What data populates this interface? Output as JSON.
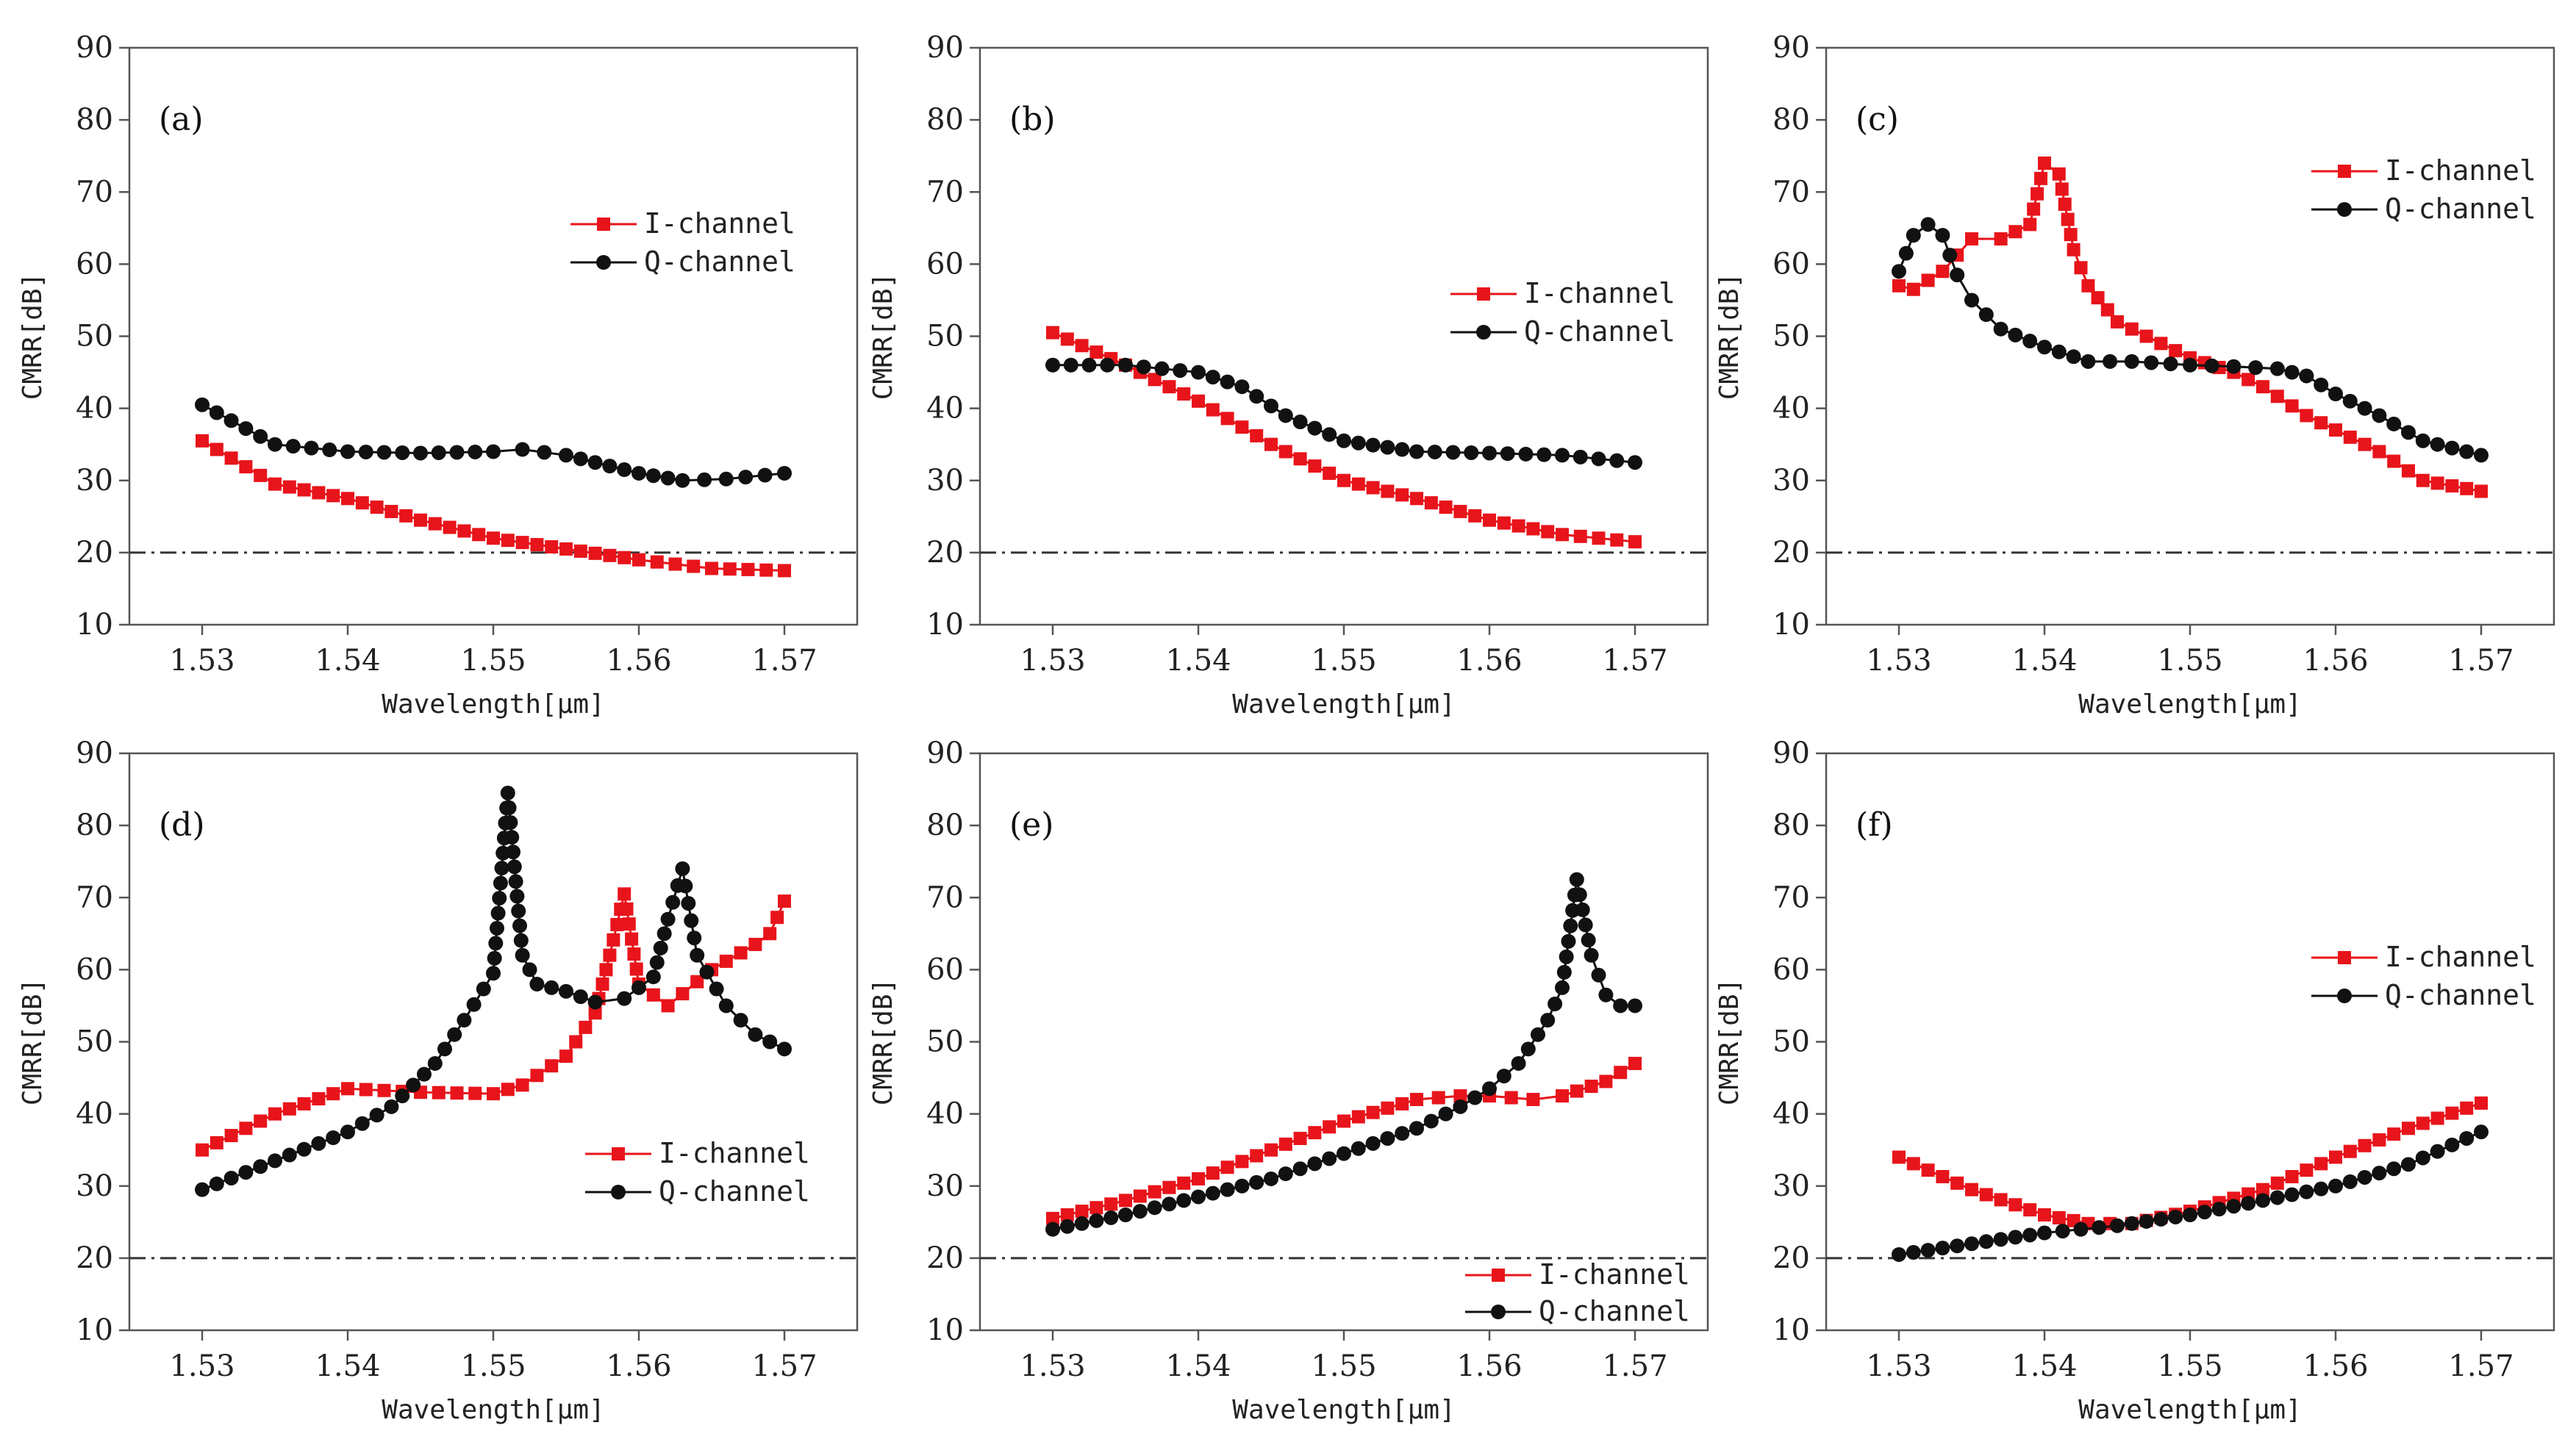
{
  "chart_data": [
    {
      "type": "line",
      "label": "(a)",
      "xlabel": "Wavelength[μm]",
      "ylabel": "CMRR[dB]",
      "xlim": [
        1.525,
        1.575
      ],
      "ylim": [
        10,
        90
      ],
      "xticks": [
        "1.53",
        "1.54",
        "1.55",
        "1.56",
        "1.57"
      ],
      "yticks": [
        "10",
        "20",
        "30",
        "40",
        "50",
        "60",
        "70",
        "80",
        "90"
      ],
      "threshold": 20,
      "legend": "upper-right",
      "series": [
        {
          "name": "I-channel",
          "color": "#e8141b",
          "marker": "square",
          "x": [
            1.53,
            1.535,
            1.54,
            1.545,
            1.55,
            1.555,
            1.56,
            1.565,
            1.57
          ],
          "y": [
            35.5,
            29.5,
            27.5,
            24.5,
            22.0,
            20.5,
            19.0,
            17.8,
            17.5
          ]
        },
        {
          "name": "Q-channel",
          "color": "#111111",
          "marker": "circle",
          "x": [
            1.53,
            1.535,
            1.54,
            1.545,
            1.55,
            1.552,
            1.555,
            1.56,
            1.563,
            1.566,
            1.57
          ],
          "y": [
            40.5,
            35.0,
            34.0,
            33.8,
            34.0,
            34.3,
            33.5,
            31.0,
            30.0,
            30.2,
            31.0
          ]
        }
      ]
    },
    {
      "type": "line",
      "label": "(b)",
      "xlabel": "Wavelength[μm]",
      "ylabel": "CMRR[dB]",
      "xlim": [
        1.525,
        1.575
      ],
      "ylim": [
        10,
        90
      ],
      "xticks": [
        "1.53",
        "1.54",
        "1.55",
        "1.56",
        "1.57"
      ],
      "yticks": [
        "10",
        "20",
        "30",
        "40",
        "50",
        "60",
        "70",
        "80",
        "90"
      ],
      "threshold": 20,
      "legend": "upper-right",
      "series": [
        {
          "name": "I-channel",
          "color": "#e8141b",
          "marker": "square",
          "x": [
            1.53,
            1.535,
            1.54,
            1.545,
            1.55,
            1.555,
            1.56,
            1.565,
            1.57
          ],
          "y": [
            50.5,
            46.0,
            41.0,
            35.0,
            30.0,
            27.5,
            24.5,
            22.5,
            21.5
          ]
        },
        {
          "name": "Q-channel",
          "color": "#111111",
          "marker": "circle",
          "x": [
            1.53,
            1.535,
            1.54,
            1.543,
            1.546,
            1.55,
            1.555,
            1.56,
            1.565,
            1.57
          ],
          "y": [
            46.0,
            46.0,
            45.0,
            43.0,
            39.0,
            35.5,
            34.0,
            33.8,
            33.5,
            32.5
          ]
        }
      ]
    },
    {
      "type": "line",
      "label": "(c)",
      "xlabel": "Wavelength[μm]",
      "ylabel": "CMRR[dB]",
      "xlim": [
        1.525,
        1.575
      ],
      "ylim": [
        10,
        90
      ],
      "xticks": [
        "1.53",
        "1.54",
        "1.55",
        "1.56",
        "1.57"
      ],
      "yticks": [
        "10",
        "20",
        "30",
        "40",
        "50",
        "60",
        "70",
        "80",
        "90"
      ],
      "threshold": 20,
      "legend": "upper-right",
      "series": [
        {
          "name": "I-channel",
          "color": "#e8141b",
          "marker": "square",
          "x": [
            1.53,
            1.531,
            1.533,
            1.535,
            1.537,
            1.539,
            1.54,
            1.541,
            1.542,
            1.543,
            1.545,
            1.548,
            1.55,
            1.553,
            1.555,
            1.558,
            1.56,
            1.563,
            1.566,
            1.57
          ],
          "y": [
            57.0,
            56.5,
            59.0,
            63.5,
            63.5,
            65.5,
            74.0,
            72.5,
            62.0,
            57.0,
            52.0,
            49.0,
            47.0,
            45.0,
            43.0,
            39.0,
            37.0,
            34.0,
            30.0,
            28.5
          ]
        },
        {
          "name": "Q-channel",
          "color": "#111111",
          "marker": "circle",
          "x": [
            1.53,
            1.531,
            1.532,
            1.533,
            1.534,
            1.535,
            1.537,
            1.54,
            1.543,
            1.546,
            1.55,
            1.553,
            1.556,
            1.558,
            1.56,
            1.563,
            1.566,
            1.57
          ],
          "y": [
            59.0,
            64.0,
            65.5,
            64.0,
            58.5,
            55.0,
            51.0,
            48.5,
            46.5,
            46.5,
            46.0,
            45.8,
            45.5,
            44.5,
            42.0,
            39.0,
            35.5,
            33.5
          ]
        }
      ]
    },
    {
      "type": "line",
      "label": "(d)",
      "xlabel": "Wavelength[μm]",
      "ylabel": "CMRR[dB]",
      "xlim": [
        1.525,
        1.575
      ],
      "ylim": [
        10,
        90
      ],
      "xticks": [
        "1.53",
        "1.54",
        "1.55",
        "1.56",
        "1.57"
      ],
      "yticks": [
        "10",
        "20",
        "30",
        "40",
        "50",
        "60",
        "70",
        "80",
        "90"
      ],
      "threshold": 20,
      "legend": "lower-right",
      "series": [
        {
          "name": "I-channel",
          "color": "#e8141b",
          "marker": "square",
          "x": [
            1.53,
            1.535,
            1.54,
            1.545,
            1.55,
            1.552,
            1.555,
            1.557,
            1.558,
            1.559,
            1.56,
            1.562,
            1.565,
            1.568,
            1.569,
            1.57
          ],
          "y": [
            35.0,
            40.0,
            43.5,
            43.0,
            42.8,
            44.0,
            48.0,
            54.0,
            62.0,
            70.5,
            58.0,
            55.0,
            60.0,
            63.5,
            65.0,
            69.5
          ]
        },
        {
          "name": "Q-channel",
          "color": "#111111",
          "marker": "circle",
          "x": [
            1.53,
            1.535,
            1.54,
            1.543,
            1.546,
            1.548,
            1.55,
            1.551,
            1.552,
            1.553,
            1.555,
            1.557,
            1.559,
            1.561,
            1.562,
            1.563,
            1.564,
            1.566,
            1.568,
            1.57
          ],
          "y": [
            29.5,
            33.5,
            37.5,
            41.0,
            47.0,
            53.0,
            59.5,
            84.5,
            62.0,
            58.0,
            57.0,
            55.5,
            56.0,
            59.0,
            67.0,
            74.0,
            62.0,
            55.0,
            51.0,
            49.0
          ]
        }
      ]
    },
    {
      "type": "line",
      "label": "(e)",
      "xlabel": "Wavelength[μm]",
      "ylabel": "CMRR[dB]",
      "xlim": [
        1.525,
        1.575
      ],
      "ylim": [
        10,
        90
      ],
      "xticks": [
        "1.53",
        "1.54",
        "1.55",
        "1.56",
        "1.57"
      ],
      "yticks": [
        "10",
        "20",
        "30",
        "40",
        "50",
        "60",
        "70",
        "80",
        "90"
      ],
      "threshold": 20,
      "legend": "bottom-right",
      "series": [
        {
          "name": "I-channel",
          "color": "#e8141b",
          "marker": "square",
          "x": [
            1.53,
            1.535,
            1.54,
            1.545,
            1.55,
            1.555,
            1.558,
            1.56,
            1.563,
            1.565,
            1.568,
            1.57
          ],
          "y": [
            25.5,
            28.0,
            31.0,
            35.0,
            39.0,
            42.0,
            42.5,
            42.5,
            42.0,
            42.5,
            44.5,
            47.0
          ]
        },
        {
          "name": "Q-channel",
          "color": "#111111",
          "marker": "circle",
          "x": [
            1.53,
            1.535,
            1.54,
            1.545,
            1.55,
            1.555,
            1.558,
            1.56,
            1.562,
            1.564,
            1.565,
            1.566,
            1.567,
            1.568,
            1.569,
            1.57
          ],
          "y": [
            24.0,
            26.0,
            28.5,
            31.0,
            34.5,
            38.0,
            41.0,
            43.5,
            47.0,
            53.0,
            57.5,
            72.5,
            62.0,
            56.5,
            55.0,
            55.0
          ]
        }
      ]
    },
    {
      "type": "line",
      "label": "(f)",
      "xlabel": "Wavelength[μm]",
      "ylabel": "CMRR[dB]",
      "xlim": [
        1.525,
        1.575
      ],
      "ylim": [
        10,
        90
      ],
      "xticks": [
        "1.53",
        "1.54",
        "1.55",
        "1.56",
        "1.57"
      ],
      "yticks": [
        "10",
        "20",
        "30",
        "40",
        "50",
        "60",
        "70",
        "80",
        "90"
      ],
      "threshold": 20,
      "legend": "right",
      "series": [
        {
          "name": "I-channel",
          "color": "#e8141b",
          "marker": "square",
          "x": [
            1.53,
            1.535,
            1.54,
            1.543,
            1.546,
            1.55,
            1.555,
            1.56,
            1.565,
            1.57
          ],
          "y": [
            34.0,
            29.5,
            26.0,
            24.8,
            24.8,
            26.5,
            29.5,
            34.0,
            38.0,
            41.5
          ]
        },
        {
          "name": "Q-channel",
          "color": "#111111",
          "marker": "circle",
          "x": [
            1.53,
            1.535,
            1.54,
            1.545,
            1.55,
            1.555,
            1.56,
            1.565,
            1.57
          ],
          "y": [
            20.5,
            22.0,
            23.5,
            24.5,
            26.0,
            28.0,
            30.0,
            33.0,
            37.5
          ]
        }
      ]
    }
  ]
}
